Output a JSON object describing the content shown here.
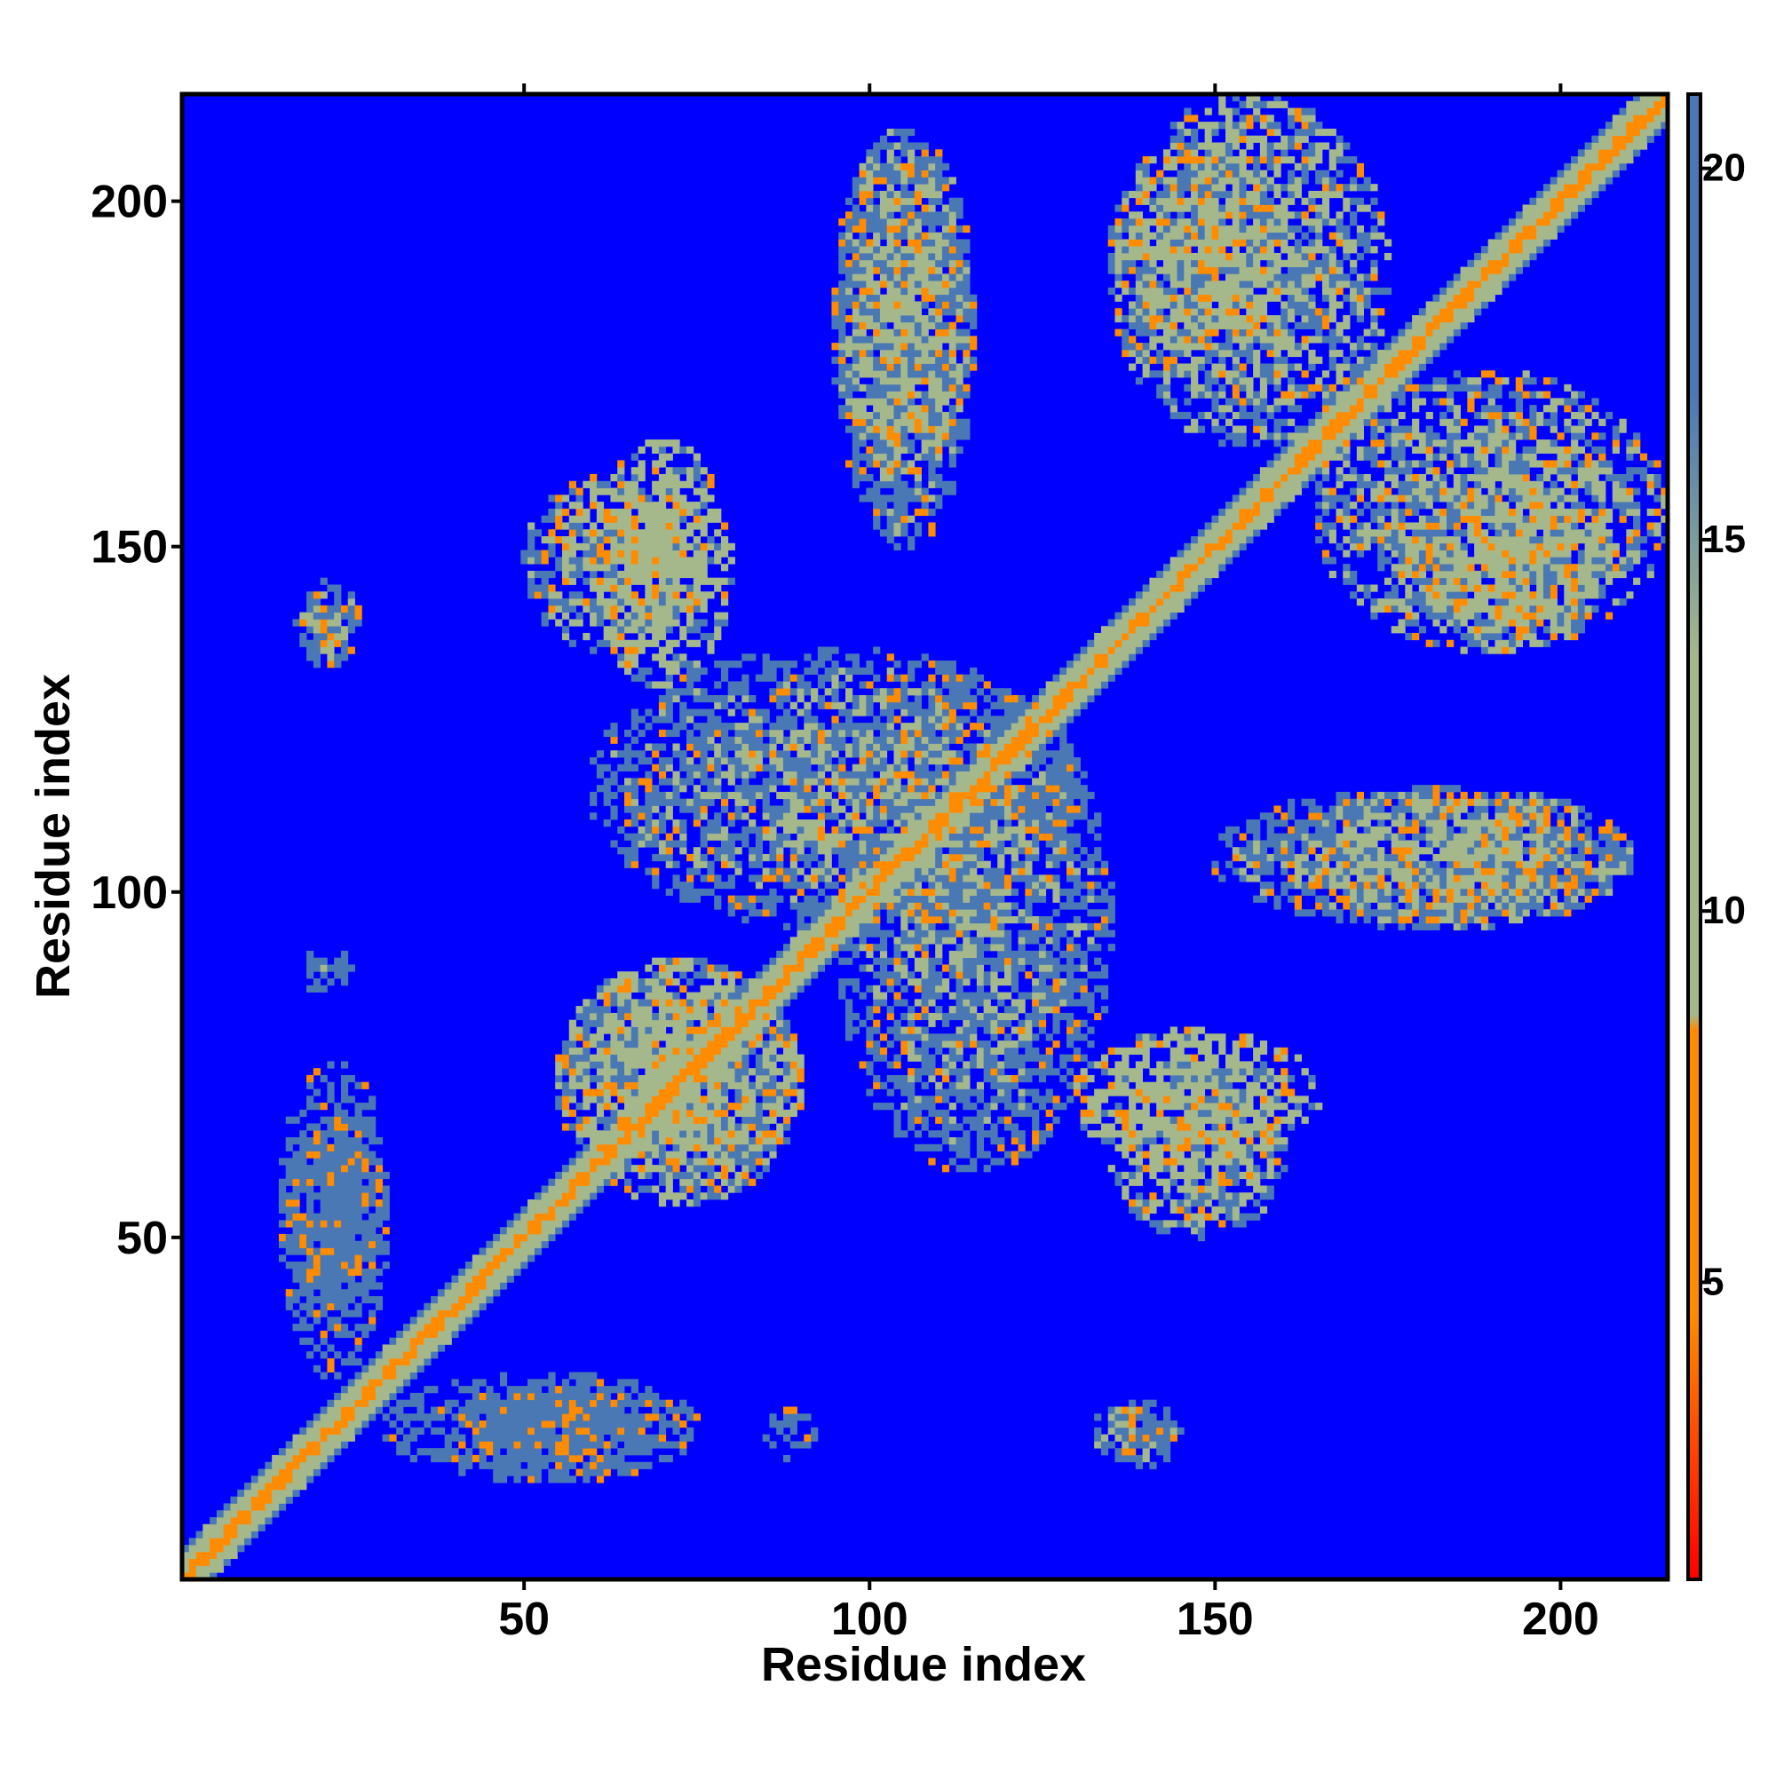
{
  "chart_data": {
    "type": "heatmap",
    "title": "",
    "xlabel": "Residue index",
    "ylabel": "Residue index",
    "xlim": [
      1,
      215
    ],
    "ylim": [
      1,
      215
    ],
    "x_ticks": [
      50,
      100,
      150,
      200
    ],
    "y_ticks": [
      50,
      100,
      150,
      200
    ],
    "colorbar": {
      "ticks": [
        5,
        10,
        15,
        20
      ],
      "range": [
        1,
        21
      ],
      "saturation_value": 21,
      "colors": [
        "#ff0000",
        "#ff8c00",
        "#a5b88c",
        "#4a78b4",
        "#0000ff"
      ]
    },
    "background_value": 21,
    "diagonal": {
      "contact_value": 4,
      "band_halfwidth": 4
    },
    "contact_regions": [
      {
        "x": [
          60,
          80
        ],
        "y": [
          130,
          165
        ],
        "level": 11
      },
      {
        "x": [
          95,
          115
        ],
        "y": [
          160,
          210
        ],
        "level": 12
      },
      {
        "x": [
          135,
          175
        ],
        "y": [
          165,
          215
        ],
        "level": 12
      },
      {
        "x": [
          178,
          208
        ],
        "y": [
          135,
          160
        ],
        "level": 12
      },
      {
        "x": [
          95,
          135
        ],
        "y": [
          60,
          130
        ],
        "level": 13
      },
      {
        "x": [
          150,
          210
        ],
        "y": [
          95,
          115
        ],
        "level": 13
      },
      {
        "x": [
          135,
          160
        ],
        "y": [
          50,
          75
        ],
        "level": 12
      },
      {
        "x": [
          55,
          90
        ],
        "y": [
          55,
          90
        ],
        "level": 12
      },
      {
        "x": [
          15,
          30
        ],
        "y": [
          30,
          70
        ],
        "level": 16
      },
      {
        "x": [
          40,
          75
        ],
        "y": [
          15,
          30
        ],
        "level": 16
      },
      {
        "x": [
          18,
          26
        ],
        "y": [
          132,
          142
        ],
        "level": 13
      },
      {
        "x": [
          85,
          92
        ],
        "y": [
          18,
          25
        ],
        "level": 14
      },
      {
        "x": [
          135,
          145
        ],
        "y": [
          17,
          26
        ],
        "level": 13
      }
    ]
  }
}
